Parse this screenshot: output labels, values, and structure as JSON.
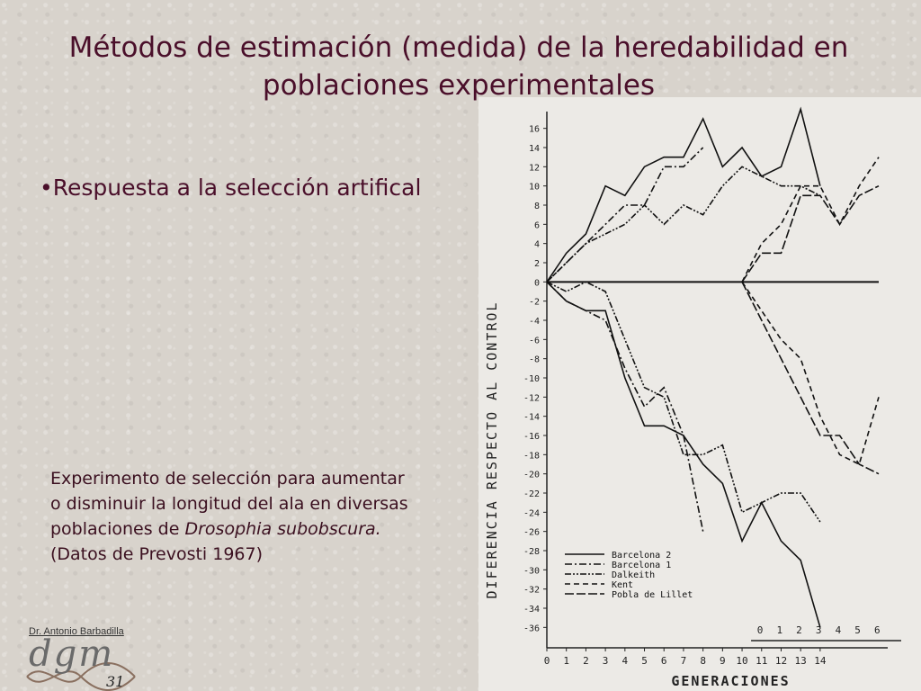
{
  "slide": {
    "title": "Métodos de estimación (medida) de la heredabilidad en poblaciones experimentales",
    "bullet": "•Respuesta a la selección artifical",
    "caption": {
      "line1": "Experimento de selección para aumentar",
      "line2": "o disminuir la longitud del ala en diversas",
      "line3_prefix": "poblaciones de ",
      "line3_species": "Drosophia subobscura.",
      "line4": "(Datos de Prevosti 1967)"
    },
    "author": "Dr. Antonio Barbadilla",
    "logo_text": "dgm",
    "page_number": "31"
  },
  "chart_data": {
    "type": "line",
    "title": "",
    "ylabel": "DIFERENCIA RESPECTO AL CONTROL",
    "xlabel": "GENERACIONES",
    "ylim": [
      -37,
      17
    ],
    "xlim": [
      0,
      14
    ],
    "yticks": [
      16,
      14,
      12,
      10,
      8,
      6,
      4,
      2,
      0,
      -2,
      -4,
      -6,
      -8,
      -10,
      -12,
      -14,
      -16,
      -18,
      -20,
      -22,
      -24,
      -26,
      -28,
      -30,
      -32,
      -34,
      -36
    ],
    "xticks": [
      0,
      1,
      2,
      3,
      4,
      5,
      6,
      7,
      8,
      9,
      10,
      11,
      12,
      13,
      14
    ],
    "xticks_secondary": [
      0,
      1,
      2,
      3,
      4,
      5,
      6
    ],
    "legend_position": "bottom-right",
    "legend": [
      "Barcelona 2",
      "Barcelona 1",
      "Dalkeith",
      "Kent",
      "Pobla de Lillet"
    ],
    "series": [
      {
        "name": "Barcelona 2",
        "style": "solid",
        "x": [
          0,
          1,
          2,
          3,
          4,
          5,
          6,
          7,
          8,
          9,
          10,
          11,
          12,
          13,
          14
        ],
        "y": [
          0,
          3,
          5,
          10,
          9,
          12,
          13,
          13,
          17,
          12,
          14,
          11,
          12,
          18,
          10
        ]
      },
      {
        "name": "Barcelona 2",
        "style": "solid",
        "x": [
          0,
          1,
          2,
          3,
          4,
          5,
          6,
          7,
          8,
          9,
          10,
          11,
          12,
          13,
          14
        ],
        "y": [
          0,
          -2,
          -3,
          -3,
          -10,
          -15,
          -15,
          -16,
          -19,
          -21,
          -27,
          -23,
          -27,
          -29,
          -36
        ]
      },
      {
        "name": "Barcelona 1",
        "style": "dashdot",
        "x": [
          0,
          1,
          2,
          3,
          4,
          5,
          6,
          7,
          8
        ],
        "y": [
          0,
          2,
          4,
          6,
          8,
          8,
          12,
          12,
          14
        ]
      },
      {
        "name": "Barcelona 1",
        "style": "dashdot",
        "x": [
          0,
          1,
          2,
          3,
          4,
          5,
          6,
          7,
          8
        ],
        "y": [
          0,
          -2,
          -3,
          -4,
          -9,
          -13,
          -11,
          -16,
          -26
        ]
      },
      {
        "name": "Dalkeith",
        "style": "dashdotdot",
        "x": [
          0,
          1,
          2,
          3,
          4,
          5,
          6,
          7,
          8,
          9,
          10,
          11,
          12,
          13,
          14
        ],
        "y": [
          0,
          2,
          4,
          5,
          6,
          8,
          6,
          8,
          7,
          10,
          12,
          11,
          10,
          10,
          9
        ]
      },
      {
        "name": "Dalkeith",
        "style": "dashdotdot",
        "x": [
          0,
          1,
          2,
          3,
          4,
          5,
          6,
          7,
          8,
          9,
          10,
          11,
          12,
          13,
          14
        ],
        "y": [
          0,
          -1,
          0,
          -1,
          -6,
          -11,
          -12,
          -18,
          -18,
          -17,
          -24,
          -23,
          -22,
          -22,
          -25
        ]
      },
      {
        "name": "Kent",
        "style": "dashed",
        "x": [
          10,
          11,
          12,
          13,
          14,
          15,
          16,
          17
        ],
        "y": [
          0,
          4,
          6,
          10,
          10,
          6,
          10,
          13
        ]
      },
      {
        "name": "Kent",
        "style": "dashed",
        "x": [
          10,
          11,
          12,
          13,
          14,
          15,
          16,
          17
        ],
        "y": [
          0,
          -3,
          -6,
          -8,
          -14,
          -18,
          -19,
          -12
        ]
      },
      {
        "name": "Pobla de Lillet",
        "style": "longdash",
        "x": [
          10,
          11,
          12,
          13,
          14,
          15,
          16,
          17
        ],
        "y": [
          0,
          3,
          3,
          9,
          9,
          6,
          9,
          10
        ]
      },
      {
        "name": "Pobla de Lillet",
        "style": "longdash",
        "x": [
          10,
          11,
          12,
          13,
          14,
          15,
          16,
          17
        ],
        "y": [
          0,
          -4,
          -8,
          -12,
          -16,
          -16,
          -19,
          -20
        ]
      }
    ],
    "control": {
      "x": [
        0,
        17
      ],
      "y": [
        0,
        0
      ]
    }
  }
}
